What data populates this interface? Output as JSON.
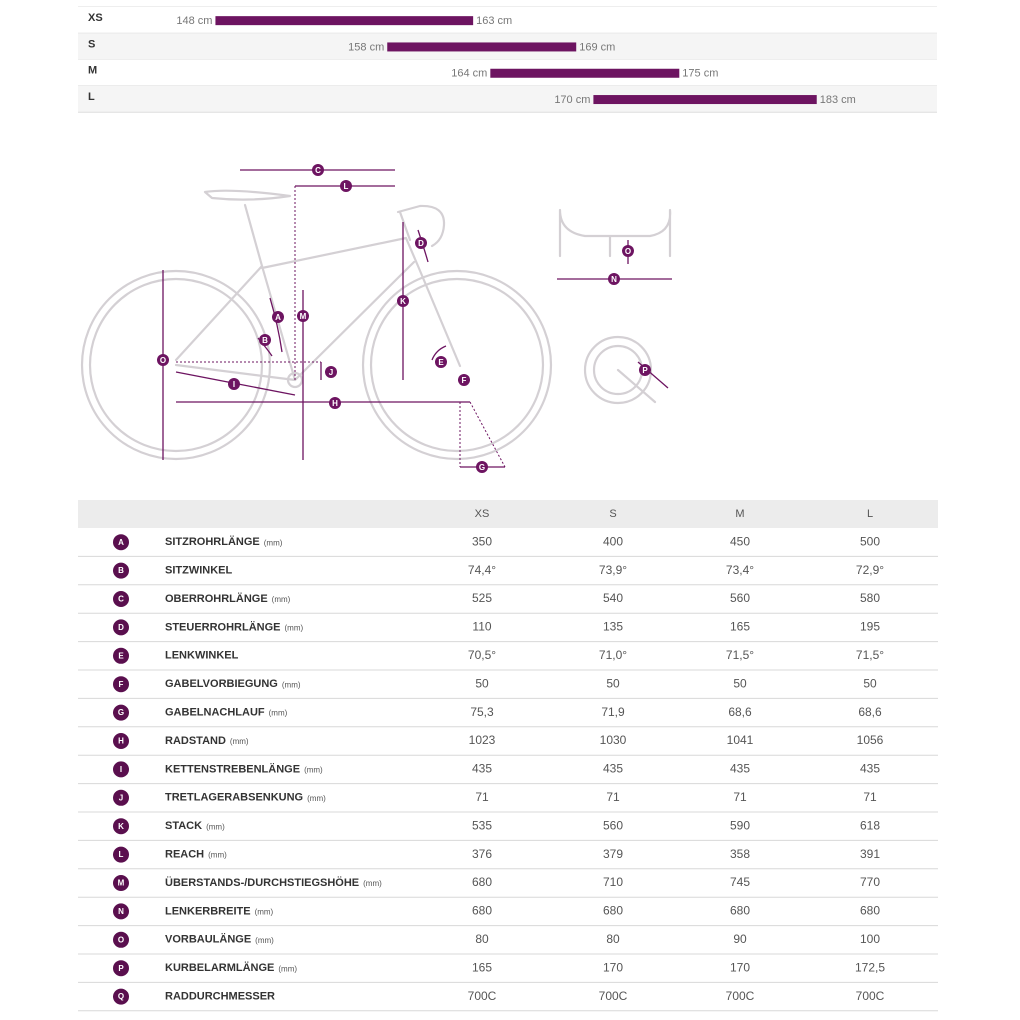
{
  "chart_data": {
    "type": "range-bar",
    "categories": [
      "XS",
      "S",
      "M",
      "L"
    ],
    "low": [
      148,
      158,
      164,
      170
    ],
    "high": [
      163,
      169,
      175,
      183
    ],
    "low_labels": [
      "148 cm",
      "158 cm",
      "164 cm",
      "170 cm"
    ],
    "high_labels": [
      "163 cm",
      "169 cm",
      "175 cm",
      "183 cm"
    ],
    "xlim": [
      140,
      190
    ],
    "color": "#6d1461"
  },
  "table": {
    "header": [
      "XS",
      "S",
      "M",
      "L"
    ],
    "rows": [
      {
        "key": "A",
        "name": "SITZROHRLÄNGE",
        "unit": "(mm)",
        "values": [
          "350",
          "400",
          "450",
          "500"
        ]
      },
      {
        "key": "B",
        "name": "SITZWINKEL",
        "values": [
          "74,4°",
          "73,9°",
          "73,4°",
          "72,9°"
        ]
      },
      {
        "key": "C",
        "name": "OBERROHRLÄNGE",
        "unit": "(mm)",
        "values": [
          "525",
          "540",
          "560",
          "580"
        ]
      },
      {
        "key": "D",
        "name": "STEUERROHRLÄNGE",
        "unit": "(mm)",
        "values": [
          "110",
          "135",
          "165",
          "195"
        ]
      },
      {
        "key": "E",
        "name": "LENKWINKEL",
        "values": [
          "70,5°",
          "71,0°",
          "71,5°",
          "71,5°"
        ]
      },
      {
        "key": "F",
        "name": "GABELVORBIEGUNG",
        "unit": "(mm)",
        "values": [
          "50",
          "50",
          "50",
          "50"
        ]
      },
      {
        "key": "G",
        "name": "GABELNACHLAUF",
        "unit": "(mm)",
        "values": [
          "75,3",
          "71,9",
          "68,6",
          "68,6"
        ]
      },
      {
        "key": "H",
        "name": "RADSTAND",
        "unit": "(mm)",
        "values": [
          "1023",
          "1030",
          "1041",
          "1056"
        ]
      },
      {
        "key": "I",
        "name": "KETTENSTREBENLÄNGE",
        "unit": "(mm)",
        "values": [
          "435",
          "435",
          "435",
          "435"
        ]
      },
      {
        "key": "J",
        "name": "TRETLAGERABSENKUNG",
        "unit": "(mm)",
        "values": [
          "71",
          "71",
          "71",
          "71"
        ]
      },
      {
        "key": "K",
        "name": "STACK",
        "unit": "(mm)",
        "values": [
          "535",
          "560",
          "590",
          "618"
        ]
      },
      {
        "key": "L",
        "name": "REACH",
        "unit": "(mm)",
        "values": [
          "376",
          "379",
          "358",
          "391"
        ]
      },
      {
        "key": "M",
        "name": "ÜBERSTANDS-/DURCHSTIEGSHÖHE",
        "unit": "(mm)",
        "values": [
          "680",
          "710",
          "745",
          "770"
        ]
      },
      {
        "key": "N",
        "name": "LENKERBREITE",
        "unit": "(mm)",
        "values": [
          "680",
          "680",
          "680",
          "680"
        ]
      },
      {
        "key": "O",
        "name": "VORBAULÄNGE",
        "unit": "(mm)",
        "values": [
          "80",
          "80",
          "90",
          "100"
        ]
      },
      {
        "key": "P",
        "name": "KURBELARMLÄNGE",
        "unit": "(mm)",
        "values": [
          "165",
          "170",
          "170",
          "172,5"
        ]
      },
      {
        "key": "Q",
        "name": "RADDURCHMESSER",
        "values": [
          "700C",
          "700C",
          "700C",
          "700C"
        ]
      }
    ]
  }
}
